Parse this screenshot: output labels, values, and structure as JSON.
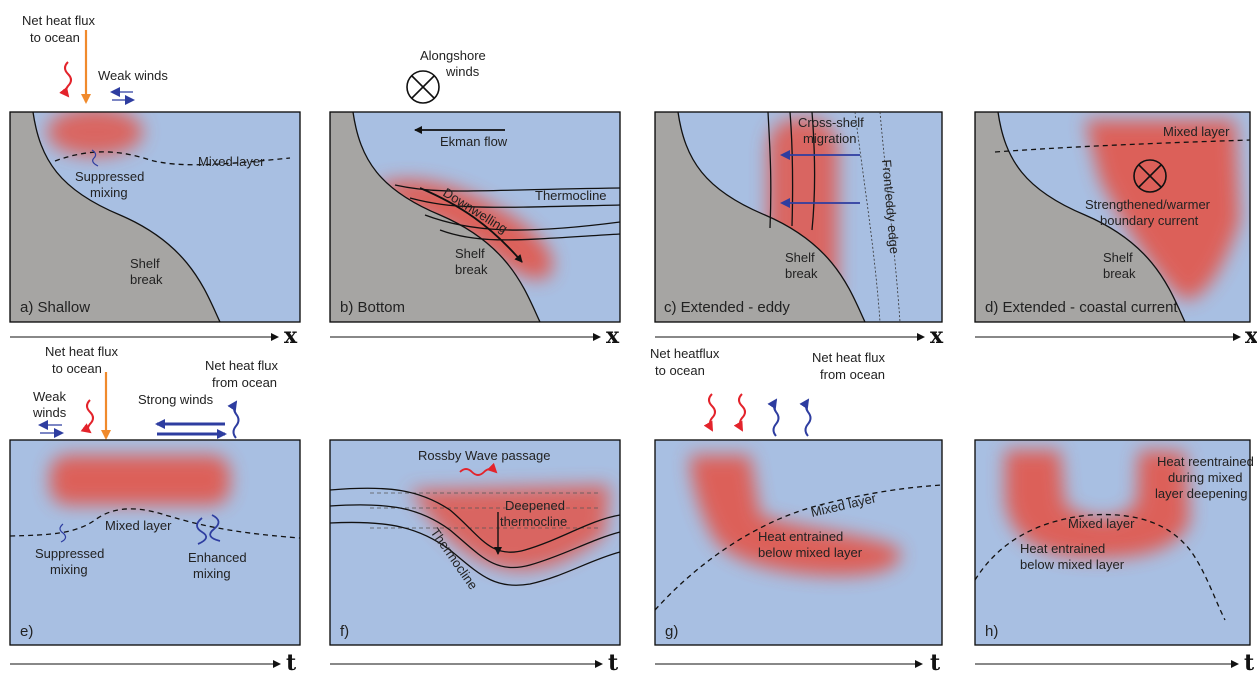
{
  "colors": {
    "ocean": "#a8bfe2",
    "shelf": "#a6a5a3",
    "heat": "#e2564c",
    "blue_arrow": "#2e3da0",
    "red_arrow": "#e3232b",
    "orange_arrow": "#f08a2c"
  },
  "panels": {
    "a": {
      "label": "a)  Shallow",
      "net_heat_flux": [
        "Net heat flux",
        "to ocean"
      ],
      "weak_winds": "Weak winds",
      "mixed_layer": "Mixed layer",
      "suppressed": [
        "Suppressed",
        "mixing"
      ],
      "shelf_break": [
        "Shelf",
        "break"
      ],
      "axis": "x"
    },
    "b": {
      "label": "b) Bottom",
      "winds": [
        "Alongshore",
        "winds"
      ],
      "ekman": "Ekman flow",
      "thermocline": "Thermocline",
      "downwelling": "Downwelling",
      "shelf_break": [
        "Shelf",
        "break"
      ],
      "axis": "x"
    },
    "c": {
      "label": "c) Extended - eddy",
      "migration": [
        "Cross-shelf",
        "migration"
      ],
      "front": "Front/eddy edge",
      "shelf_break": [
        "Shelf",
        "break"
      ],
      "axis": "x"
    },
    "d": {
      "label": "d) Extended - coastal current",
      "mixed_layer": "Mixed layer",
      "current": [
        "Strengthened/warmer",
        "boundary current"
      ],
      "shelf_break": [
        "Shelf",
        "break"
      ],
      "axis": "x"
    },
    "e": {
      "label": "e)",
      "net_heat_flux_to": [
        "Net heat flux",
        "to ocean"
      ],
      "net_heat_flux_from": [
        "Net heat flux",
        "from ocean"
      ],
      "weak_winds": [
        "Weak",
        "winds"
      ],
      "strong_winds": "Strong winds",
      "mixed_layer": "Mixed layer",
      "suppressed": [
        "Suppressed",
        "mixing"
      ],
      "enhanced": [
        "Enhanced",
        "mixing"
      ],
      "axis": "t"
    },
    "f": {
      "label": "f)",
      "rossby": "Rossby Wave passage",
      "deepened": [
        "Deepened",
        "thermocline"
      ],
      "thermocline": "Thermocline",
      "axis": "t"
    },
    "g": {
      "label": "g)",
      "flux_to": [
        "Net heatflux",
        "to ocean"
      ],
      "flux_from": [
        "Net heat flux",
        "from ocean"
      ],
      "mixed_layer": "Mixed layer",
      "entrained": [
        "Heat entrained",
        "below mixed layer"
      ],
      "axis": "t"
    },
    "h": {
      "label": "h)",
      "reentrained": [
        "Heat reentrained",
        "during mixed",
        "layer deepening"
      ],
      "mixed_layer": "Mixed layer",
      "entrained": [
        "Heat entrained",
        "below mixed layer"
      ],
      "axis": "t"
    }
  }
}
